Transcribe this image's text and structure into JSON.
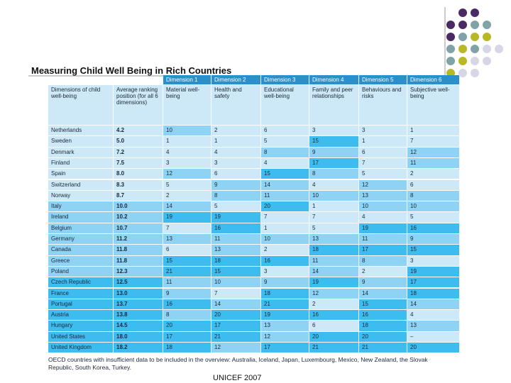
{
  "header": {
    "title": "Measuring Child Well Being in Rich Countries"
  },
  "table": {
    "dimensions": [
      "Dimension 1",
      "Dimension 2",
      "Dimension 3",
      "Dimension 4",
      "Dimension 5",
      "Dimension 6"
    ],
    "columns": [
      "Dimensions of child well-being",
      "Average ranking position (for all 6 dimensions)",
      "Material well-being",
      "Health and safety",
      "Educational well-being",
      "Family and peer relationships",
      "Behaviours and risks",
      "Subjective well-being"
    ],
    "rows": [
      [
        "Netherlands",
        "4.2",
        "10",
        "2",
        "6",
        "3",
        "3",
        "1"
      ],
      [
        "Sweden",
        "5.0",
        "1",
        "1",
        "5",
        "15",
        "1",
        "7"
      ],
      [
        "Denmark",
        "7.2",
        "4",
        "4",
        "8",
        "9",
        "6",
        "12"
      ],
      [
        "Finland",
        "7.5",
        "3",
        "3",
        "4",
        "17",
        "7",
        "11"
      ],
      [
        "Spain",
        "8.0",
        "12",
        "6",
        "15",
        "8",
        "5",
        "2"
      ],
      [
        "Switzerland",
        "8.3",
        "5",
        "9",
        "14",
        "4",
        "12",
        "6"
      ],
      [
        "Norway",
        "8.7",
        "2",
        "8",
        "11",
        "10",
        "13",
        "8"
      ],
      [
        "Italy",
        "10.0",
        "14",
        "5",
        "20",
        "1",
        "10",
        "10"
      ],
      [
        "Ireland",
        "10.2",
        "19",
        "19",
        "7",
        "7",
        "4",
        "5"
      ],
      [
        "Belgium",
        "10.7",
        "7",
        "16",
        "1",
        "5",
        "19",
        "16"
      ],
      [
        "Germany",
        "11.2",
        "13",
        "11",
        "10",
        "13",
        "11",
        "9"
      ],
      [
        "Canada",
        "11.8",
        "6",
        "13",
        "2",
        "18",
        "17",
        "15"
      ],
      [
        "Greece",
        "11.8",
        "15",
        "18",
        "16",
        "11",
        "8",
        "3"
      ],
      [
        "Poland",
        "12.3",
        "21",
        "15",
        "3",
        "14",
        "2",
        "19"
      ],
      [
        "Czech Republic",
        "12.5",
        "11",
        "10",
        "9",
        "19",
        "9",
        "17"
      ],
      [
        "France",
        "13.0",
        "9",
        "7",
        "18",
        "12",
        "14",
        "18"
      ],
      [
        "Portugal",
        "13.7",
        "16",
        "14",
        "21",
        "2",
        "15",
        "14"
      ],
      [
        "Austria",
        "13.8",
        "8",
        "20",
        "19",
        "16",
        "16",
        "4"
      ],
      [
        "Hungary",
        "14.5",
        "20",
        "17",
        "13",
        "6",
        "18",
        "13"
      ],
      [
        "United States",
        "18.0",
        "17",
        "21",
        "12",
        "20",
        "20",
        "–"
      ],
      [
        "United Kingdom",
        "18.2",
        "18",
        "12",
        "17",
        "21",
        "21",
        "20"
      ]
    ],
    "footnote": "OECD countries with insufficient data to be included in the overview: Australia, Iceland, Japan, Luxembourg, Mexico, New Zealand, the Slovak Republic, South Korea, Turkey."
  },
  "footer": {
    "source": "UNICEF 2007"
  }
}
